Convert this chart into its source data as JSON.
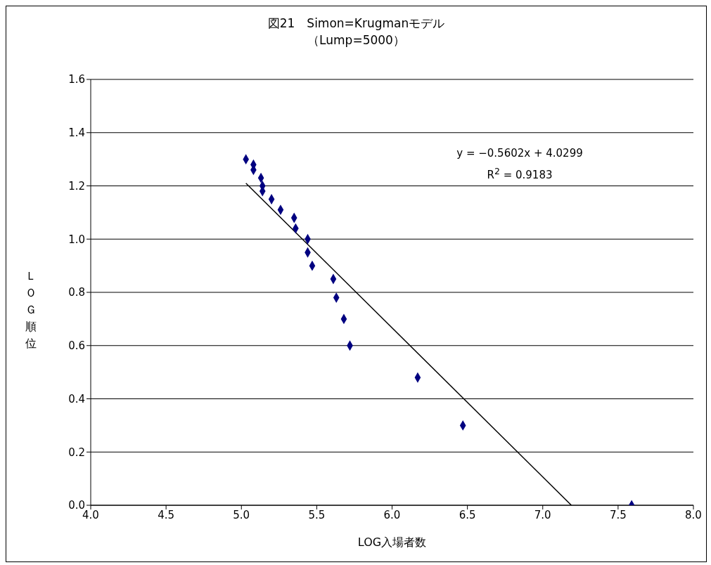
{
  "chart_data": {
    "type": "scatter",
    "title": "図21　Simon=Krugmanモデル",
    "subtitle": "（Lump=5000）",
    "xlabel": "LOG入場者数",
    "ylabel": "ＬＯＧ順位",
    "xlim": [
      4,
      8
    ],
    "xticks": [
      {
        "value": 4,
        "label": "4.0"
      },
      {
        "value": 4.5,
        "label": "4.5"
      },
      {
        "value": 5,
        "label": "5.0"
      },
      {
        "value": 5.5,
        "label": "5.5"
      },
      {
        "value": 6,
        "label": "6.0"
      },
      {
        "value": 6.5,
        "label": "6.5"
      },
      {
        "value": 7,
        "label": "7.0"
      },
      {
        "value": 7.5,
        "label": "7.5"
      },
      {
        "value": 8,
        "label": "8.0"
      }
    ],
    "ylim": [
      0,
      1.6
    ],
    "yticks": [
      {
        "value": 0,
        "label": "0.0"
      },
      {
        "value": 0.2,
        "label": "0.2"
      },
      {
        "value": 0.4,
        "label": "0.4"
      },
      {
        "value": 0.6,
        "label": "0.6"
      },
      {
        "value": 0.8,
        "label": "0.8"
      },
      {
        "value": 1,
        "label": "1.0"
      },
      {
        "value": 1.2,
        "label": "1.2"
      },
      {
        "value": 1.4,
        "label": "1.4"
      },
      {
        "value": 1.6,
        "label": "1.6"
      }
    ],
    "grid": "y",
    "annotations": [
      "y = −0.5602x + 4.0299",
      "R$^{2}$ = 0.9183"
    ],
    "series": [
      {
        "color": "#000080",
        "marker": "diamond",
        "x": [
          5.03,
          5.08,
          5.08,
          5.13,
          5.14,
          5.14,
          5.2,
          5.26,
          5.35,
          5.36,
          5.44,
          5.44,
          5.47,
          5.61,
          5.63,
          5.68,
          5.72,
          6.17,
          6.47,
          7.59
        ],
        "values": [
          1.3,
          1.28,
          1.26,
          1.23,
          1.2,
          1.18,
          1.15,
          1.11,
          1.08,
          1.04,
          1.0,
          0.95,
          0.9,
          0.85,
          0.78,
          0.7,
          0.6,
          0.48,
          0.3,
          0.0
        ]
      },
      {
        "type": "line",
        "marker": "none",
        "color": "#000000",
        "x": [
          5.03,
          7.19
        ],
        "values": [
          1.21,
          0.0
        ]
      }
    ]
  }
}
